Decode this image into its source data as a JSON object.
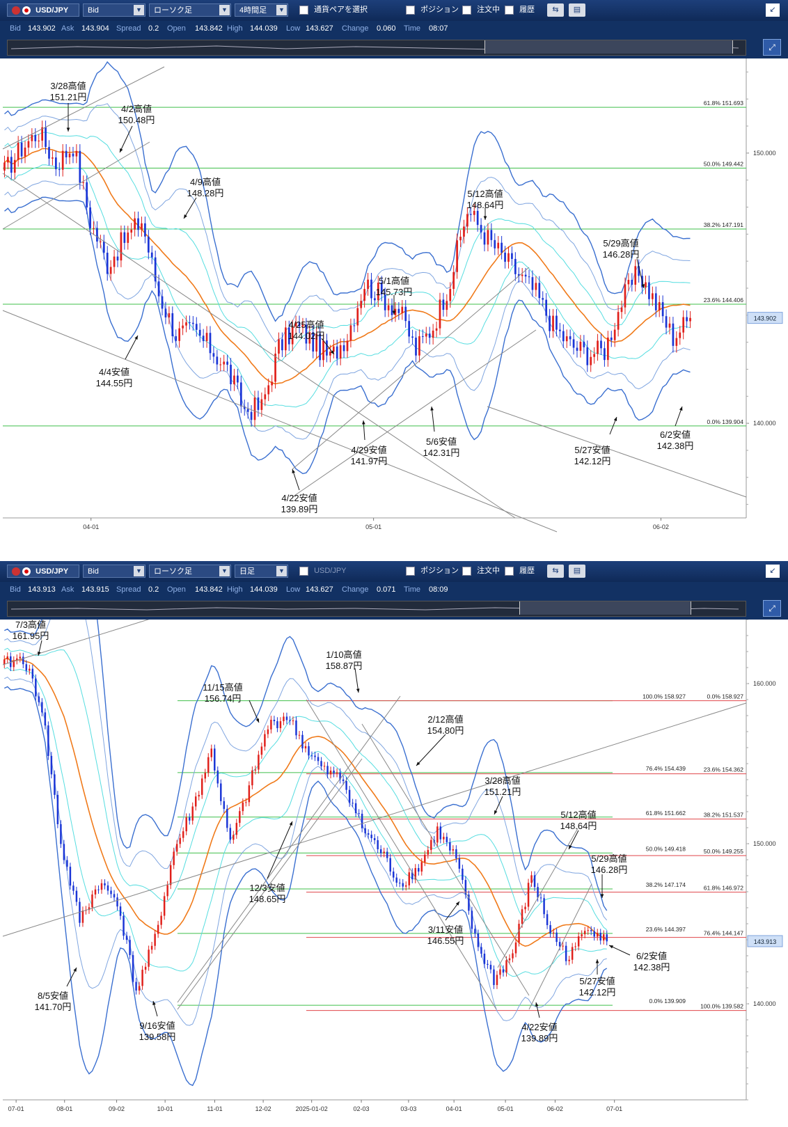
{
  "panels": [
    {
      "toolbar": {
        "pair": "USD/JPY",
        "price_type": "Bid",
        "chart_kind": "ローソク足",
        "timeframe": "4時間足",
        "select_pair": "通貨ペアを選択",
        "position": "ポジション",
        "orders": "注文中",
        "history": "履歴"
      },
      "info": {
        "bid_label": "Bid",
        "bid": "143.902",
        "ask_label": "Ask",
        "ask": "143.904",
        "spread_label": "Spread",
        "spread": "0.2",
        "open_label": "Open",
        "open": "143.842",
        "high_label": "High",
        "high": "144.039",
        "low_label": "Low",
        "low": "143.627",
        "change_label": "Change",
        "change": "0.060",
        "time_label": "Time",
        "time": "08:07"
      },
      "chart": {
        "current_price": "143.902",
        "y_ticks": [
          "150.000",
          "140.000"
        ],
        "x_ticks": [
          "04-01",
          "05-01",
          "06-02"
        ]
      },
      "annotations": [
        {
          "date": "3/28高値",
          "price": "151.21円"
        },
        {
          "date": "4/2高値",
          "price": "150.48円"
        },
        {
          "date": "4/9高値",
          "price": "148.28円"
        },
        {
          "date": "4/4安値",
          "price": "144.55円"
        },
        {
          "date": "4/25高値",
          "price": "144.02円"
        },
        {
          "date": "5/1高値",
          "price": "145.73円"
        },
        {
          "date": "5/12高値",
          "price": "148.64円"
        },
        {
          "date": "5/29高値",
          "price": "146.28円"
        },
        {
          "date": "4/22安値",
          "price": "139.89円"
        },
        {
          "date": "4/29安値",
          "price": "141.97円"
        },
        {
          "date": "5/6安値",
          "price": "142.31円"
        },
        {
          "date": "5/27安値",
          "price": "142.12円"
        },
        {
          "date": "6/2安値",
          "price": "142.38円"
        }
      ],
      "fib_levels": [
        {
          "label": "61.8% 151.693"
        },
        {
          "label": "50.0% 149.442"
        },
        {
          "label": "38.2% 147.191"
        },
        {
          "label": "23.6% 144.406"
        },
        {
          "label": "0.0% 139.904"
        }
      ]
    },
    {
      "toolbar": {
        "pair": "USD/JPY",
        "price_type": "Bid",
        "chart_kind": "ローソク足",
        "timeframe": "日足",
        "select_pair": "USD/JPY",
        "position": "ポジション",
        "orders": "注文中",
        "history": "履歴"
      },
      "info": {
        "bid_label": "Bid",
        "bid": "143.913",
        "ask_label": "Ask",
        "ask": "143.915",
        "spread_label": "Spread",
        "spread": "0.2",
        "open_label": "Open",
        "open": "143.842",
        "high_label": "High",
        "high": "144.039",
        "low_label": "Low",
        "low": "143.627",
        "change_label": "Change",
        "change": "0.071",
        "time_label": "Time",
        "time": "08:09"
      },
      "chart": {
        "current_price": "143.913",
        "y_ticks": [
          "160.000",
          "150.000",
          "140.000"
        ],
        "x_ticks": [
          "07-01",
          "08-01",
          "09-02",
          "10-01",
          "11-01",
          "12-02",
          "2025-01-02",
          "02-03",
          "03-03",
          "04-01",
          "05-01",
          "06-02",
          "07-01"
        ]
      },
      "annotations": [
        {
          "date": "7/3高値",
          "price": "161.95円"
        },
        {
          "date": "11/15高値",
          "price": "156.74円"
        },
        {
          "date": "1/10高値",
          "price": "158.87円"
        },
        {
          "date": "2/12高値",
          "price": "154.80円"
        },
        {
          "date": "3/28高値",
          "price": "151.21円"
        },
        {
          "date": "5/12高値",
          "price": "148.64円"
        },
        {
          "date": "5/29高値",
          "price": "146.28円"
        },
        {
          "date": "12/3安値",
          "price": "148.65円"
        },
        {
          "date": "3/11安値",
          "price": "146.55円"
        },
        {
          "date": "6/2安値",
          "price": "142.38円"
        },
        {
          "date": "5/27安値",
          "price": "142.12円"
        },
        {
          "date": "8/5安値",
          "price": "141.70円"
        },
        {
          "date": "9/16安値",
          "price": "139.58円"
        },
        {
          "date": "4/22安値",
          "price": "139.89円"
        }
      ],
      "fib_left": [
        {
          "label": "100.0% 158.927"
        },
        {
          "label": "76.4% 154.439"
        },
        {
          "label": "61.8% 151.662"
        },
        {
          "label": "50.0% 149.418"
        },
        {
          "label": "38.2% 147.174"
        },
        {
          "label": "23.6% 144.397"
        },
        {
          "label": "0.0% 139.909"
        }
      ],
      "fib_right": [
        {
          "label": "0.0% 158.927"
        },
        {
          "label": "23.6% 154.362"
        },
        {
          "label": "38.2% 151.537"
        },
        {
          "label": "50.0% 149.255"
        },
        {
          "label": "61.8% 146.972"
        },
        {
          "label": "76.4% 144.147"
        },
        {
          "label": "100.0% 139.582"
        }
      ]
    }
  ],
  "chart_data": [
    {
      "type": "candlestick",
      "title": "USD/JPY 4時間足",
      "ylim": [
        136.5,
        153.5
      ],
      "series": [
        {
          "name": "close",
          "x": [
            "3/24",
            "3/26",
            "3/28",
            "3/31",
            "4/2",
            "4/3",
            "4/4",
            "4/7",
            "4/9",
            "4/10",
            "4/11",
            "4/14",
            "4/16",
            "4/18",
            "4/21",
            "4/22",
            "4/23",
            "4/25",
            "4/28",
            "4/29",
            "4/30",
            "5/1",
            "5/2",
            "5/5",
            "5/6",
            "5/7",
            "5/9",
            "5/12",
            "5/13",
            "5/14",
            "5/16",
            "5/19",
            "5/21",
            "5/23",
            "5/26",
            "5/27",
            "5/28",
            "5/29",
            "5/30",
            "6/2",
            "6/3"
          ],
          "values": [
            149.3,
            150.2,
            150.8,
            149.6,
            150.3,
            147.5,
            145.9,
            146.8,
            147.5,
            144.8,
            143.3,
            143.4,
            142.8,
            142.0,
            140.5,
            140.6,
            142.8,
            143.6,
            143.0,
            142.4,
            143.3,
            145.2,
            144.7,
            144.2,
            142.7,
            143.6,
            145.3,
            147.9,
            147.0,
            146.2,
            145.5,
            144.8,
            143.6,
            142.9,
            142.6,
            142.7,
            144.5,
            145.6,
            144.4,
            143.2,
            143.9
          ]
        }
      ]
    },
    {
      "type": "candlestick",
      "title": "USD/JPY 日足",
      "ylim": [
        134.0,
        164.0
      ],
      "series": [
        {
          "name": "close",
          "x": [
            "7/1",
            "7/3",
            "7/15",
            "8/1",
            "8/5",
            "8/15",
            "9/2",
            "9/16",
            "10/1",
            "10/15",
            "11/1",
            "11/15",
            "12/3",
            "12/16",
            "1/2",
            "1/10",
            "1/20",
            "2/3",
            "2/12",
            "2/20",
            "3/3",
            "3/11",
            "3/20",
            "3/28",
            "4/1",
            "4/10",
            "4/22",
            "5/1",
            "5/12",
            "5/20",
            "5/27",
            "5/29",
            "6/2"
          ],
          "values": [
            161.2,
            161.6,
            158.5,
            150.0,
            145.2,
            147.5,
            146.5,
            140.8,
            144.0,
            149.5,
            152.2,
            155.8,
            149.9,
            153.5,
            157.3,
            158.0,
            156.0,
            154.5,
            154.0,
            151.0,
            149.5,
            147.5,
            148.5,
            150.8,
            149.0,
            144.0,
            141.5,
            143.1,
            148.0,
            144.5,
            142.8,
            145.0,
            143.9
          ]
        }
      ]
    }
  ]
}
